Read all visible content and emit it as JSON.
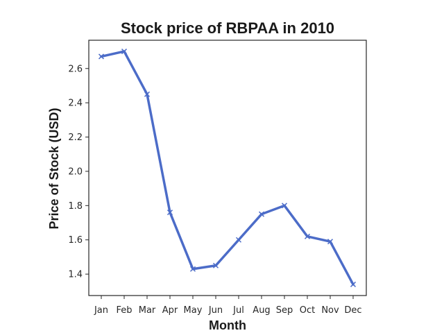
{
  "chart_data": {
    "type": "line",
    "title": "Stock price of RBPAA in 2010",
    "xlabel": "Month",
    "ylabel": "Price of Stock (USD)",
    "categories": [
      "Jan",
      "Feb",
      "Mar",
      "Apr",
      "May",
      "Jun",
      "Jul",
      "Aug",
      "Sep",
      "Oct",
      "Nov",
      "Dec"
    ],
    "values": [
      2.67,
      2.7,
      2.45,
      1.76,
      1.43,
      1.45,
      1.6,
      1.75,
      1.8,
      1.62,
      1.59,
      1.34
    ],
    "yticks": [
      "1.4",
      "1.6",
      "1.8",
      "2.0",
      "2.2",
      "2.4",
      "2.6"
    ],
    "ylim": [
      1.275,
      2.765
    ],
    "grid": false,
    "line_color": "#4c6cc8",
    "marker": "x"
  }
}
